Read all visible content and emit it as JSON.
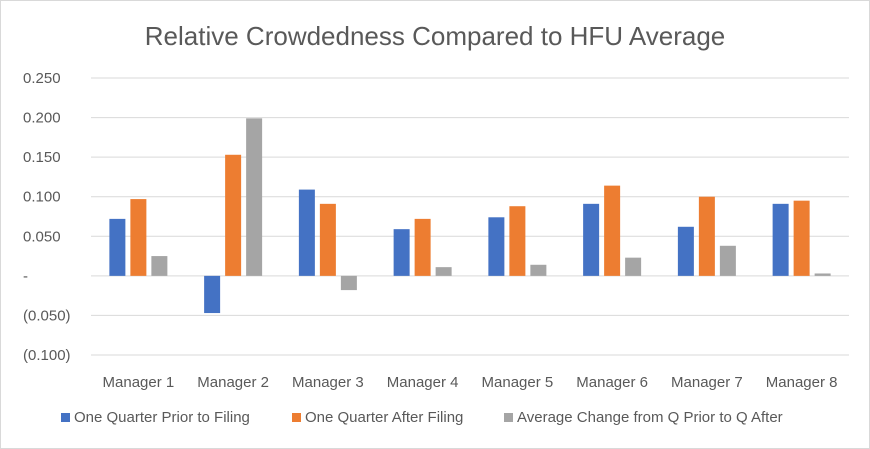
{
  "chart_data": {
    "type": "bar",
    "title": "Relative Crowdedness Compared to HFU Average",
    "xlabel": "",
    "ylabel": "",
    "categories": [
      "Manager 1",
      "Manager 2",
      "Manager 3",
      "Manager 4",
      "Manager 5",
      "Manager 6",
      "Manager 7",
      "Manager 8"
    ],
    "series": [
      {
        "name": "One Quarter Prior to Filing",
        "color": "#4472C4",
        "values": [
          0.072,
          -0.047,
          0.109,
          0.059,
          0.074,
          0.091,
          0.062,
          0.091
        ]
      },
      {
        "name": "One Quarter After Filing",
        "color": "#ED7D31",
        "values": [
          0.097,
          0.153,
          0.091,
          0.072,
          0.088,
          0.114,
          0.1,
          0.095
        ]
      },
      {
        "name": "Average Change from Q Prior to Q After",
        "color": "#A5A5A5",
        "values": [
          0.025,
          0.199,
          -0.018,
          0.011,
          0.014,
          0.023,
          0.038,
          0.003
        ]
      }
    ],
    "ylim": [
      -0.1,
      0.25
    ],
    "yticks": [
      -0.1,
      -0.05,
      0,
      0.05,
      0.1,
      0.15,
      0.2,
      0.25
    ],
    "ytick_labels": [
      "(0.100)",
      "(0.050)",
      "-",
      "0.050",
      "0.100",
      "0.150",
      "0.200",
      "0.250"
    ],
    "grid": true,
    "gridline_color": "#d9d9d9",
    "legend_position": "bottom"
  }
}
